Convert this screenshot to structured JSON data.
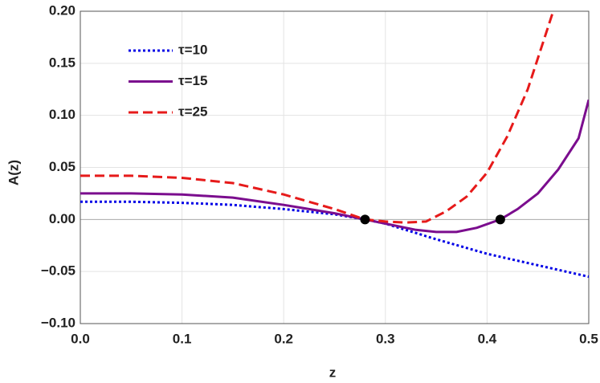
{
  "chart_data": {
    "type": "line",
    "xlabel": "z",
    "ylabel": "A(z)",
    "xlim": [
      0,
      0.5
    ],
    "ylim": [
      -0.1,
      0.2
    ],
    "xticks": [
      {
        "value": 0,
        "label": "0.0"
      },
      0.1,
      0.2,
      0.3,
      0.4,
      0.5
    ],
    "yticks": [
      {
        "value": -0.1,
        "label": "−0.10"
      },
      {
        "value": -0.05,
        "label": "−0.05"
      },
      {
        "value": 0,
        "label": "0.00"
      },
      {
        "value": 0.05,
        "label": "0.05"
      },
      {
        "value": 0.1,
        "label": "0.10"
      },
      {
        "value": 0.15,
        "label": "0.15"
      },
      {
        "value": 0.2,
        "label": "0.20"
      }
    ],
    "grid": true,
    "legend": "upper left",
    "series": [
      {
        "name": "τ=10",
        "color": "#0000e6",
        "style": "dotted",
        "x": [
          0,
          0.05,
          0.1,
          0.15,
          0.2,
          0.25,
          0.28,
          0.3,
          0.35,
          0.4,
          0.45,
          0.5
        ],
        "values": [
          0.017,
          0.017,
          0.016,
          0.014,
          0.01,
          0.005,
          0.0,
          -0.004,
          -0.019,
          -0.033,
          -0.044,
          -0.055
        ]
      },
      {
        "name": "τ=15",
        "color": "#7b0d8e",
        "style": "solid",
        "x": [
          0,
          0.05,
          0.1,
          0.15,
          0.2,
          0.25,
          0.28,
          0.3,
          0.33,
          0.35,
          0.37,
          0.39,
          0.413,
          0.43,
          0.45,
          0.47,
          0.49,
          0.5
        ],
        "values": [
          0.025,
          0.025,
          0.024,
          0.021,
          0.014,
          0.006,
          0.0,
          -0.004,
          -0.01,
          -0.012,
          -0.012,
          -0.008,
          0.0,
          0.01,
          0.025,
          0.048,
          0.078,
          0.115
        ]
      },
      {
        "name": "τ=25",
        "color": "#e61a1a",
        "style": "dashed",
        "x": [
          0,
          0.05,
          0.1,
          0.15,
          0.2,
          0.25,
          0.28,
          0.3,
          0.32,
          0.34,
          0.36,
          0.38,
          0.4,
          0.42,
          0.44,
          0.46,
          0.465
        ],
        "values": [
          0.042,
          0.042,
          0.04,
          0.035,
          0.024,
          0.01,
          0.0,
          -0.002,
          -0.003,
          -0.002,
          0.008,
          0.022,
          0.045,
          0.08,
          0.125,
          0.185,
          0.2
        ]
      }
    ],
    "points": {
      "color": "#000000",
      "x": [
        0.28,
        0.413
      ],
      "y": [
        0,
        0
      ]
    }
  }
}
